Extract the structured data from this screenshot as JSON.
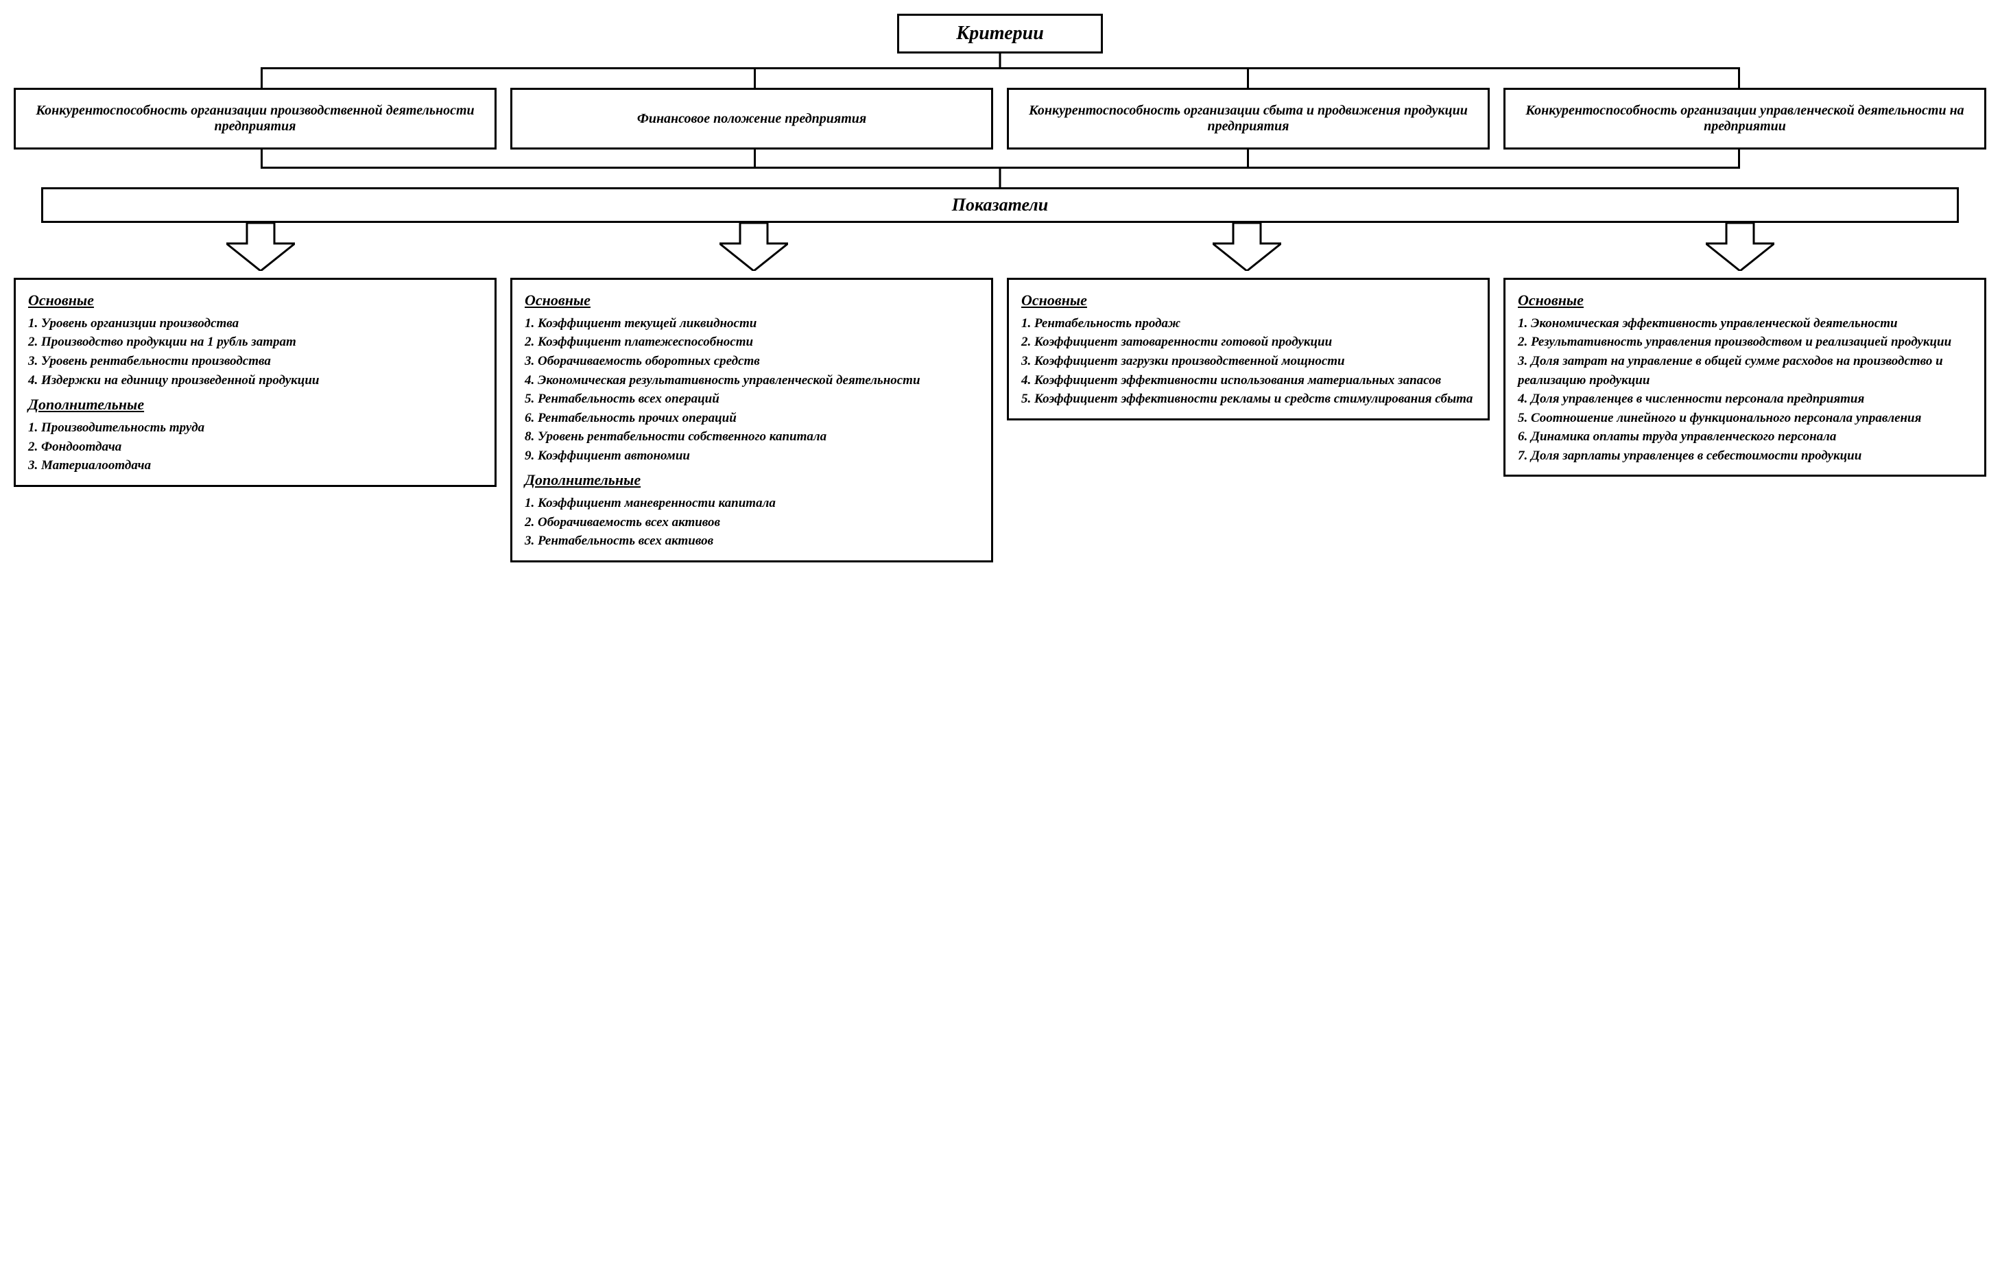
{
  "type": "flowchart",
  "background_color": "#ffffff",
  "border_color": "#000000",
  "text_color": "#000000",
  "font_family": "Times New Roman",
  "font_style": "italic bold",
  "border_width": 3,
  "root": {
    "label": "Критерии",
    "fontsize": 28
  },
  "criteria": [
    {
      "label": "Конкурентоспособность организации производственной деятельности предприятия"
    },
    {
      "label": "Финансовое положение предприятия"
    },
    {
      "label": "Конкурентоспособность организации сбыта и продвижения продукции предприятия"
    },
    {
      "label": "Конкурентоспособность организации управленческой деятельности на предприятии"
    }
  ],
  "indicators_label": "Показатели",
  "headings": {
    "main": "Основные",
    "additional": "Дополнительные"
  },
  "details": [
    {
      "main": [
        "1. Уровень организции производства",
        "2. Производство продукции на 1 рубль затрат",
        "3. Уровень рентабельности производства",
        "4. Издержки на единицу произведенной продукции"
      ],
      "additional": [
        "1. Производительность труда",
        "2. Фондоотдача",
        "3. Материалоотдача"
      ]
    },
    {
      "main": [
        "1. Коэффициент текущей ликвидности",
        "2. Коэффициент платежеспособности",
        "3. Оборачиваемость оборотных средств",
        "4. Экономическая результативность управленческой деятельности",
        "5. Рентабельность всех операций",
        "6. Рентабельность прочих операций",
        "8. Уровень рентабельности собственного капитала",
        "9. Коэффициент автономии"
      ],
      "additional": [
        "1. Коэффициент маневренности капитала",
        "2. Оборачиваемость всех активов",
        "3. Рентабельность всех активов"
      ]
    },
    {
      "main": [
        "1. Рентабельность продаж",
        "2. Коэффициент затоваренности готовой продукции",
        "3. Коэффициент загрузки производственной мощности",
        "4. Коэффициент эффективности использования материальных запасов",
        "5. Коэффициент эффективности рекламы и средств стимулирования сбыта"
      ],
      "additional": []
    },
    {
      "main": [
        "1. Экономическая эффективность управленческой деятельности",
        "2. Результативность управления производством и реализацией продукции",
        "3. Доля затрат на управление в общей сумме расходов на производство и реализацию продукции",
        "4. Доля управленцев в численности персонала предприятия",
        "5. Соотношение линейного и функционального персонала управления",
        "6. Динамика оплаты труда управленческого персонала",
        "7. Доля зарплаты управленцев в себестоимости продукции"
      ],
      "additional": []
    }
  ],
  "criteria_fontsize": 20,
  "indicators_fontsize": 26,
  "heading_fontsize": 22,
  "item_fontsize": 19,
  "arrow_stroke": "#000000",
  "arrow_fill": "#ffffff"
}
